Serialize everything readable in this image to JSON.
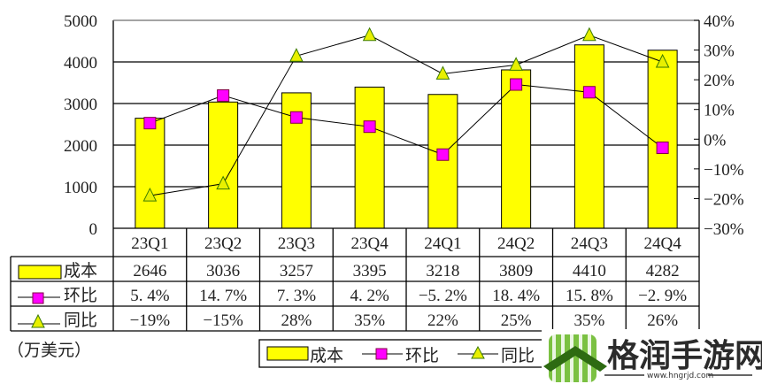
{
  "chart_data": {
    "type": "bar",
    "title": "",
    "unit_label": "（万美元）",
    "categories": [
      "23Q1",
      "23Q2",
      "23Q3",
      "23Q4",
      "24Q1",
      "24Q2",
      "24Q3",
      "24Q4"
    ],
    "series": [
      {
        "name": "成本",
        "type": "bar",
        "axis": "left",
        "color": "#ffff00",
        "values": [
          2646,
          3036,
          3257,
          3395,
          3218,
          3809,
          4410,
          4282
        ]
      },
      {
        "name": "环比",
        "type": "line",
        "axis": "right",
        "marker": "square",
        "color": "#ff00ff",
        "values": [
          5.4,
          14.7,
          7.3,
          4.2,
          -5.2,
          18.4,
          15.8,
          -2.9
        ],
        "labels": [
          "5.4%",
          "14.7%",
          "7.3%",
          "4.2%",
          "-5.2%",
          "18.4%",
          "15.8%",
          "-2.9%"
        ]
      },
      {
        "name": "同比",
        "type": "line",
        "axis": "right",
        "marker": "triangle",
        "color": "#ffff00",
        "values": [
          -19,
          -15,
          28,
          35,
          22,
          25,
          35,
          26
        ],
        "labels": [
          "-19%",
          "-15%",
          "28%",
          "35%",
          "22%",
          "25%",
          "35%",
          "26%"
        ]
      }
    ],
    "left_axis": {
      "ylim": [
        0,
        5000
      ],
      "ticks": [
        0,
        1000,
        2000,
        3000,
        4000,
        5000
      ]
    },
    "right_axis": {
      "ylim": [
        -30,
        40
      ],
      "ticks": [
        "40%",
        "30%",
        "20%",
        "10%",
        "0%",
        "-10%",
        "-20%",
        "-30%"
      ]
    },
    "grid": true,
    "legend_position": "bottom",
    "data_table": true
  },
  "legend": {
    "items": [
      "成本",
      "环比",
      "同比"
    ]
  },
  "watermark": {
    "title": "格润手游网",
    "url": "www.hngrjd.com"
  }
}
